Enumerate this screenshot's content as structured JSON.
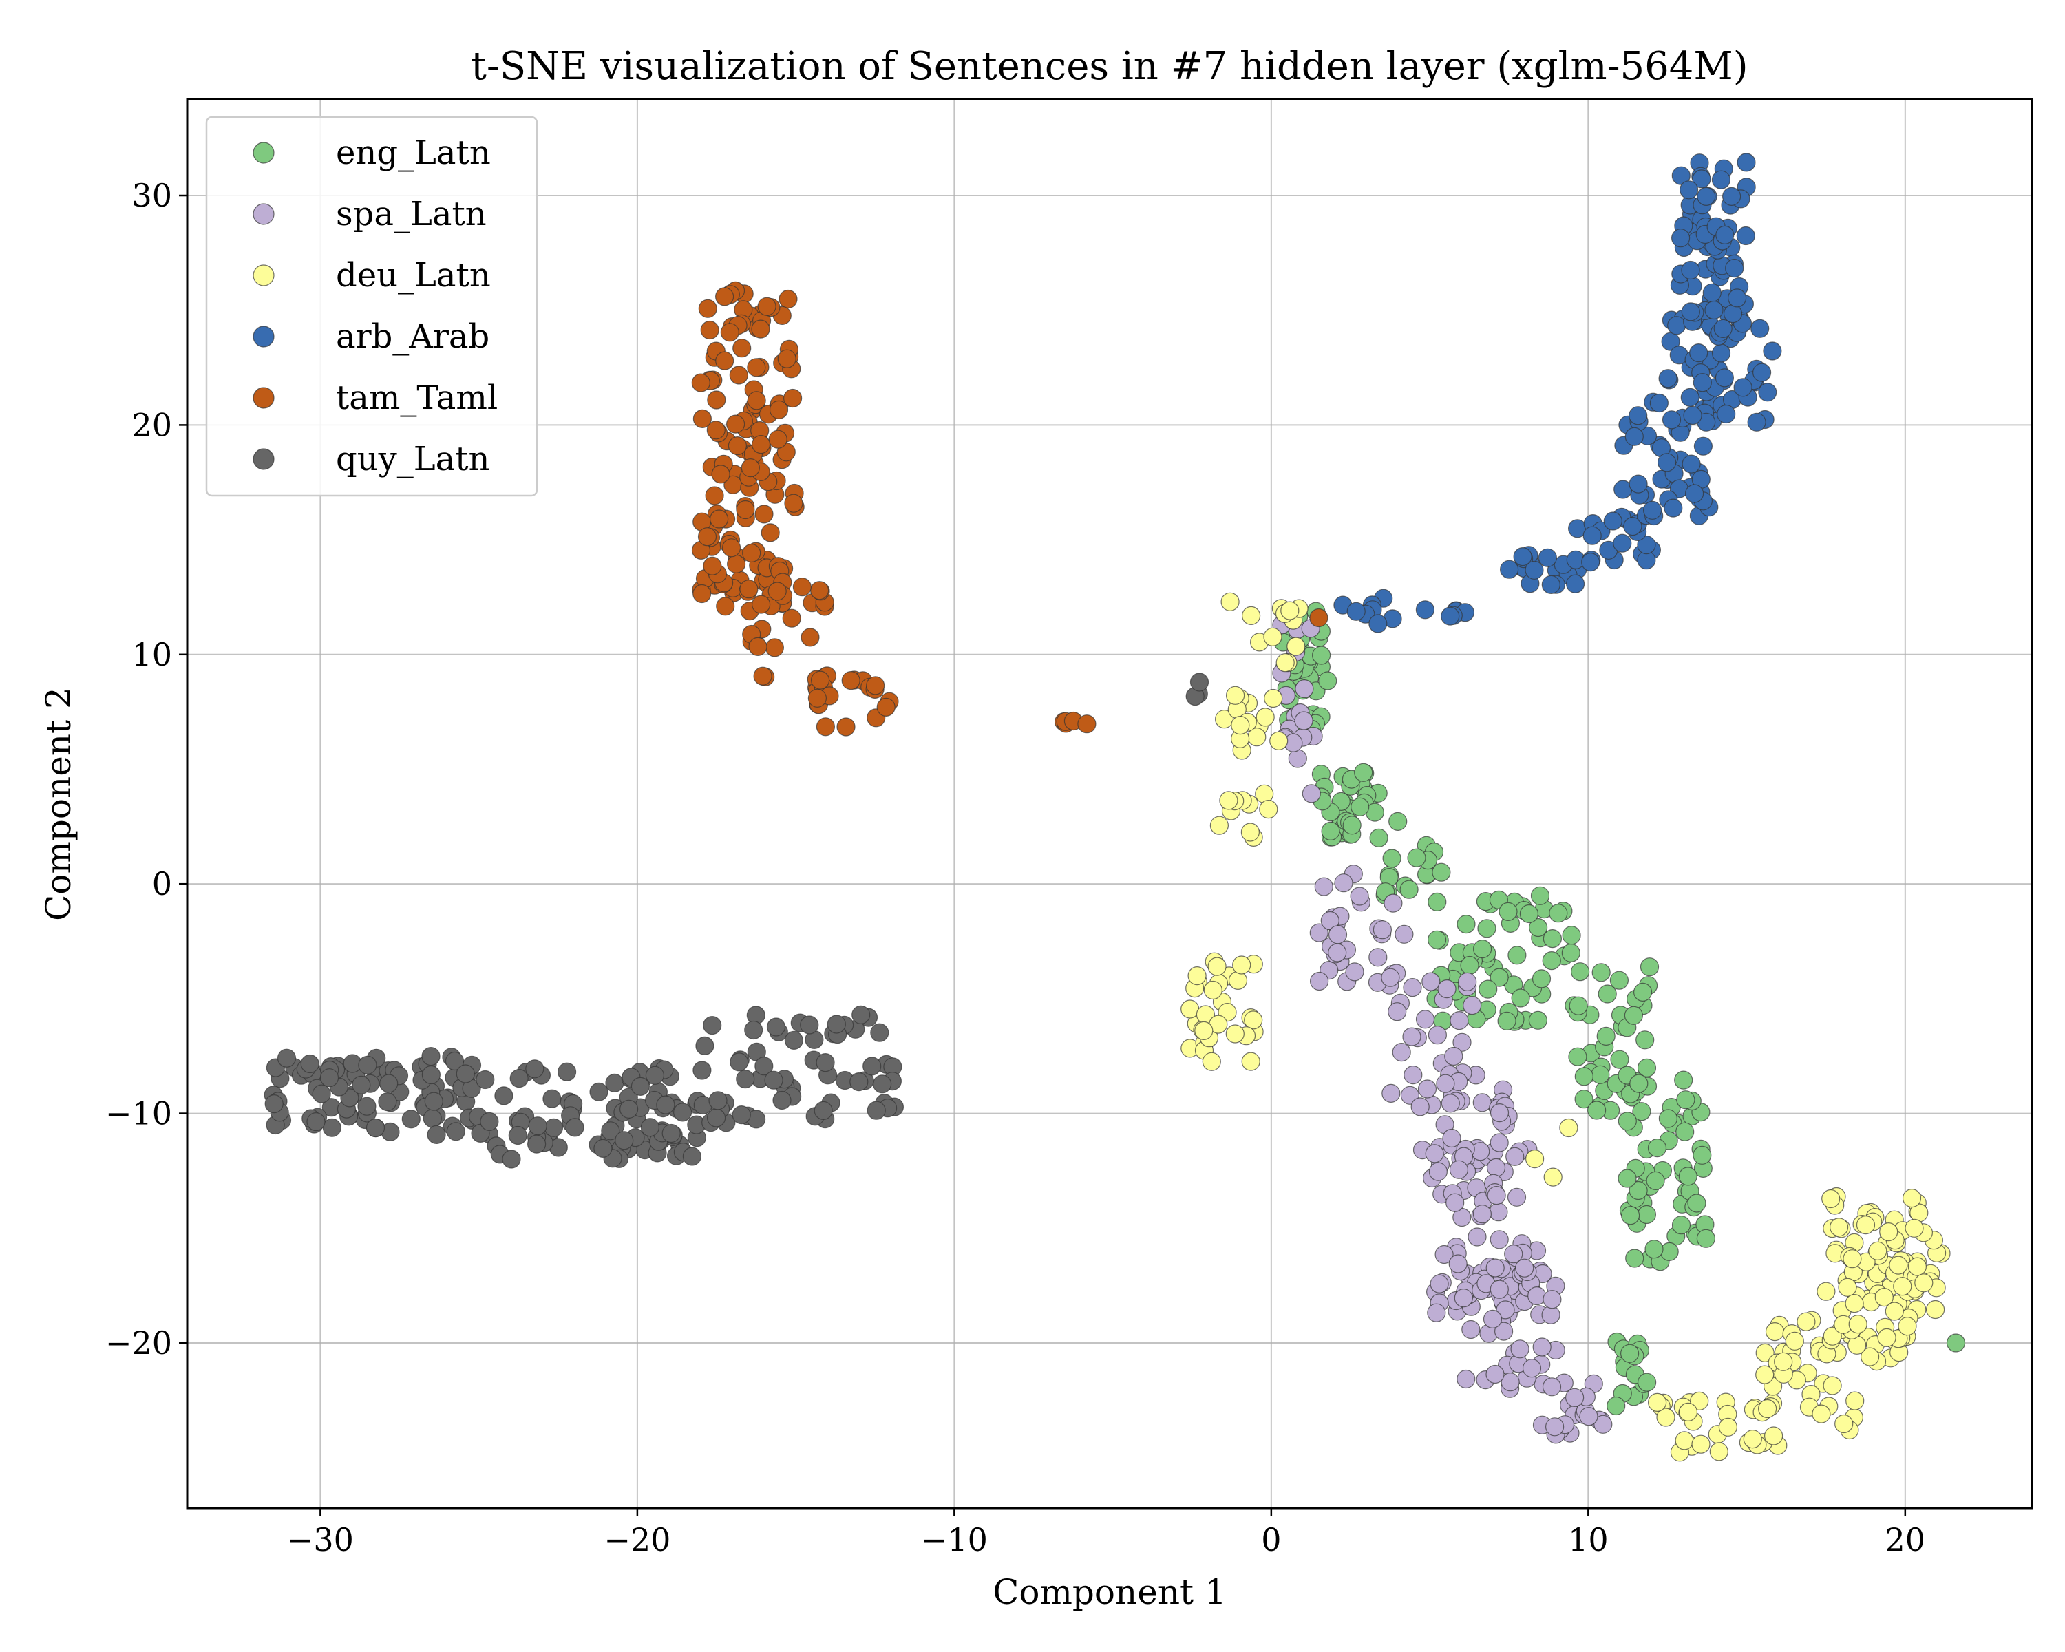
{
  "chart_data": {
    "type": "scatter",
    "title": "t-SNE visualization of Sentences in #7 hidden layer (xglm-564M)",
    "xlabel": "Component 1",
    "ylabel": "Component 2",
    "xlim": [
      -34.2,
      24.0
    ],
    "ylim": [
      -27.2,
      34.2
    ],
    "xticks": [
      -30,
      -20,
      -10,
      0,
      10,
      20
    ],
    "xtick_labels": [
      "−30",
      "−20",
      "−10",
      "0",
      "10",
      "20"
    ],
    "yticks": [
      -20,
      -10,
      0,
      10,
      20,
      30
    ],
    "ytick_labels": [
      "−20",
      "−10",
      "0",
      "10",
      "20",
      "30"
    ],
    "grid": true,
    "legend_position": "top-left",
    "series": [
      {
        "name": "eng_Latn",
        "color": "#7fc97f",
        "clusters": [
          {
            "x": [
              0.3,
              1.8
            ],
            "y": [
              6.5,
              12.0
            ],
            "n": 40,
            "seed": 11
          },
          {
            "x": [
              1.5,
              4.0
            ],
            "y": [
              2.0,
              5.0
            ],
            "n": 35,
            "seed": 12
          },
          {
            "x": [
              3.5,
              6.0
            ],
            "y": [
              -0.5,
              2.0
            ],
            "n": 15,
            "seed": 13
          },
          {
            "x": [
              5.0,
              9.5
            ],
            "y": [
              -6.0,
              -0.5
            ],
            "n": 60,
            "seed": 14
          },
          {
            "x": [
              9.5,
              12.0
            ],
            "y": [
              -10.0,
              -3.5
            ],
            "n": 40,
            "seed": 15
          },
          {
            "x": [
              11.0,
              13.8
            ],
            "y": [
              -16.5,
              -8.5
            ],
            "n": 55,
            "seed": 16
          },
          {
            "x": [
              10.8,
              12.0
            ],
            "y": [
              -23.0,
              -19.0
            ],
            "n": 15,
            "seed": 17
          },
          {
            "x": [
              21.6,
              21.6
            ],
            "y": [
              -20.0,
              -20.0
            ],
            "n": 1,
            "seed": 18
          }
        ]
      },
      {
        "name": "spa_Latn",
        "color": "#beaed4",
        "clusters": [
          {
            "x": [
              0.2,
              1.5
            ],
            "y": [
              3.5,
              12.0
            ],
            "n": 18,
            "seed": 21
          },
          {
            "x": [
              1.5,
              4.5
            ],
            "y": [
              -4.5,
              1.0
            ],
            "n": 30,
            "seed": 22
          },
          {
            "x": [
              3.5,
              6.5
            ],
            "y": [
              -9.5,
              -4.0
            ],
            "n": 30,
            "seed": 23
          },
          {
            "x": [
              4.5,
              7.5
            ],
            "y": [
              -14.0,
              -8.5
            ],
            "n": 35,
            "seed": 24
          },
          {
            "x": [
              5.0,
              8.5
            ],
            "y": [
              -19.0,
              -11.0
            ],
            "n": 55,
            "seed": 25
          },
          {
            "x": [
              6.0,
              9.0
            ],
            "y": [
              -22.0,
              -16.0
            ],
            "n": 50,
            "seed": 26
          },
          {
            "x": [
              8.5,
              10.8
            ],
            "y": [
              -24.0,
              -21.5
            ],
            "n": 20,
            "seed": 27
          }
        ]
      },
      {
        "name": "deu_Latn",
        "color": "#fdfd99",
        "clusters": [
          {
            "x": [
              -1.5,
              1.2
            ],
            "y": [
              9.5,
              12.5
            ],
            "n": 12,
            "seed": 31
          },
          {
            "x": [
              -1.5,
              0.5
            ],
            "y": [
              5.5,
              8.5
            ],
            "n": 14,
            "seed": 32
          },
          {
            "x": [
              -1.8,
              0.2
            ],
            "y": [
              2.0,
              4.0
            ],
            "n": 10,
            "seed": 33
          },
          {
            "x": [
              -2.6,
              -0.5
            ],
            "y": [
              -7.8,
              -3.2
            ],
            "n": 30,
            "seed": 34
          },
          {
            "x": [
              8.3,
              9.8
            ],
            "y": [
              -13.8,
              -10.2
            ],
            "n": 3,
            "seed": 35
          },
          {
            "x": [
              12.0,
              16.0
            ],
            "y": [
              -24.8,
              -22.5
            ],
            "n": 30,
            "seed": 36
          },
          {
            "x": [
              15.5,
              18.5
            ],
            "y": [
              -24.5,
              -19.0
            ],
            "n": 35,
            "seed": 37
          },
          {
            "x": [
              17.5,
              20.5
            ],
            "y": [
              -21.0,
              -13.5
            ],
            "n": 70,
            "seed": 38
          },
          {
            "x": [
              18.0,
              21.3
            ],
            "y": [
              -20.0,
              -15.0
            ],
            "n": 30,
            "seed": 39
          }
        ]
      },
      {
        "name": "arb_Arab",
        "color": "#386cb0",
        "clusters": [
          {
            "x": [
              2.0,
              6.5
            ],
            "y": [
              11.3,
              12.5
            ],
            "n": 14,
            "seed": 41
          },
          {
            "x": [
              7.5,
              10.0
            ],
            "y": [
              13.0,
              14.5
            ],
            "n": 18,
            "seed": 42
          },
          {
            "x": [
              9.5,
              12.0
            ],
            "y": [
              14.0,
              16.0
            ],
            "n": 20,
            "seed": 43
          },
          {
            "x": [
              11.0,
              14.0
            ],
            "y": [
              16.0,
              21.0
            ],
            "n": 45,
            "seed": 44
          },
          {
            "x": [
              12.5,
              16.0
            ],
            "y": [
              20.0,
              25.0
            ],
            "n": 50,
            "seed": 45
          },
          {
            "x": [
              12.8,
              15.0
            ],
            "y": [
              24.0,
              31.5
            ],
            "n": 60,
            "seed": 46
          }
        ]
      },
      {
        "name": "tam_Taml",
        "color": "#bf5b17",
        "clusters": [
          {
            "x": [
              -18.0,
              -15.0
            ],
            "y": [
              12.0,
              26.0
            ],
            "n": 130,
            "seed": 51
          },
          {
            "x": [
              -16.5,
              -14.0
            ],
            "y": [
              9.0,
              14.0
            ],
            "n": 25,
            "seed": 52
          },
          {
            "x": [
              -14.5,
              -12.0
            ],
            "y": [
              6.5,
              9.0
            ],
            "n": 20,
            "seed": 53
          },
          {
            "x": [
              -6.8,
              -5.8
            ],
            "y": [
              6.8,
              7.2
            ],
            "n": 5,
            "seed": 54
          },
          {
            "x": [
              1.5,
              1.5
            ],
            "y": [
              11.6,
              11.6
            ],
            "n": 1,
            "seed": 55
          },
          {
            "x": [
              -15.5,
              -15.0
            ],
            "y": [
              22.0,
              23.5
            ],
            "n": 3,
            "seed": 56
          }
        ]
      },
      {
        "name": "quy_Latn",
        "color": "#666666",
        "clusters": [
          {
            "x": [
              -31.5,
              -25.0
            ],
            "y": [
              -11.0,
              -7.5
            ],
            "n": 90,
            "seed": 61
          },
          {
            "x": [
              -25.0,
              -18.0
            ],
            "y": [
              -12.0,
              -8.0
            ],
            "n": 90,
            "seed": 62
          },
          {
            "x": [
              -18.0,
              -11.8
            ],
            "y": [
              -10.5,
              -5.7
            ],
            "n": 60,
            "seed": 63
          },
          {
            "x": [
              -2.8,
              -2.2
            ],
            "y": [
              7.9,
              8.8
            ],
            "n": 3,
            "seed": 64
          }
        ]
      }
    ]
  }
}
